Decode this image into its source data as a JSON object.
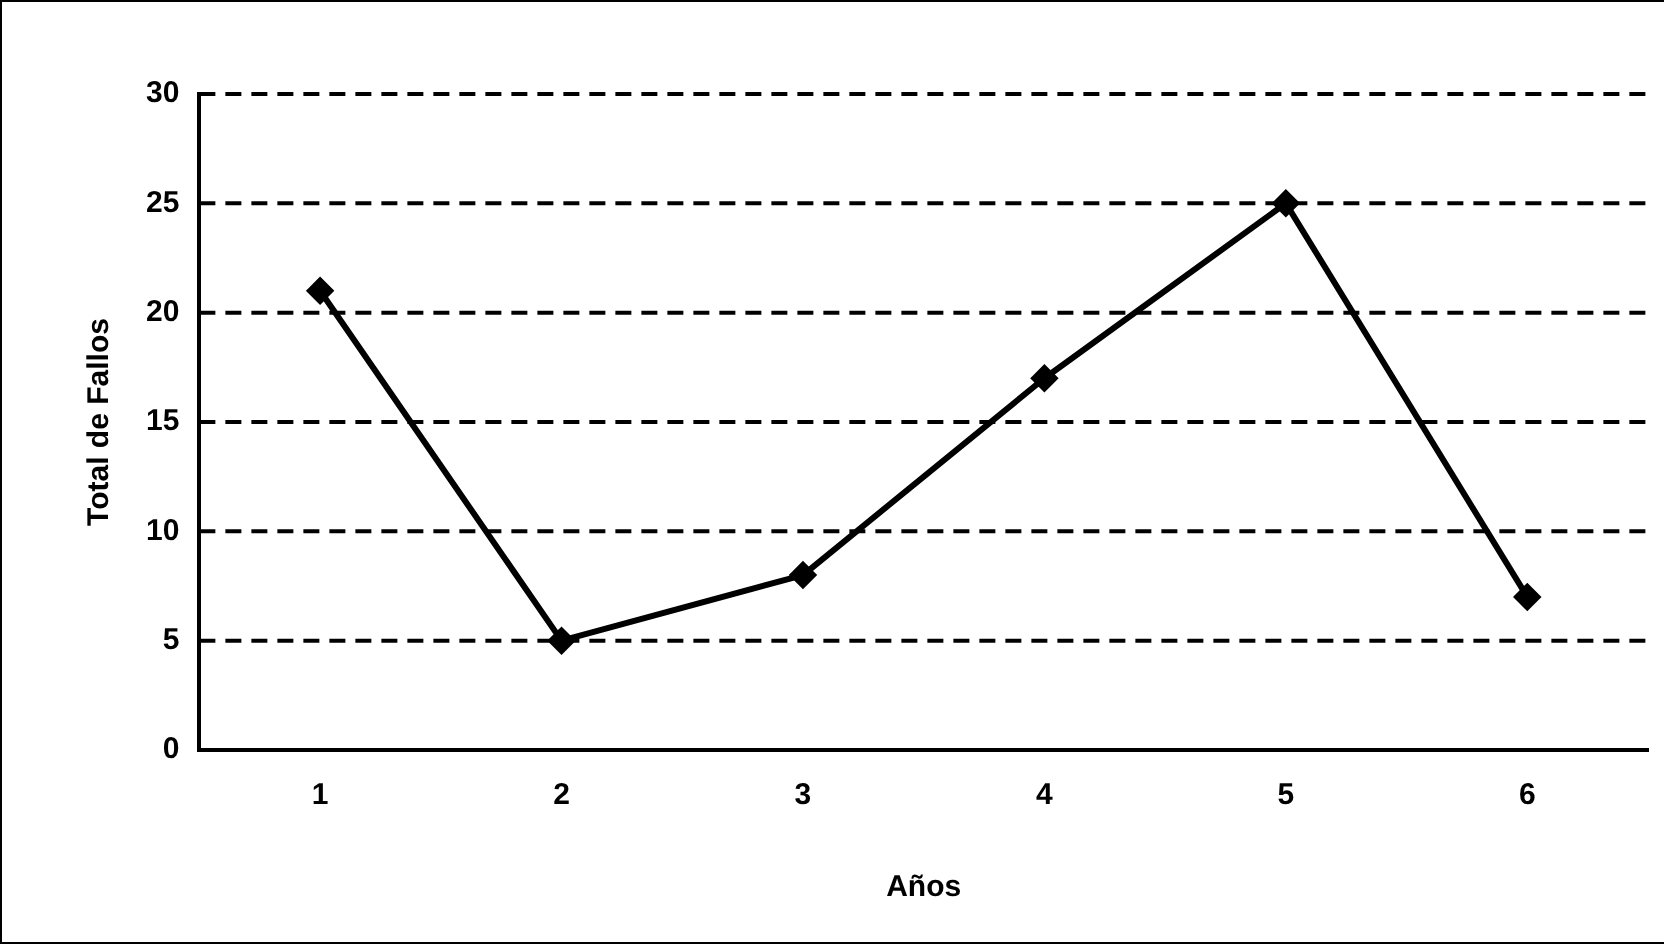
{
  "chart_data": {
    "type": "line",
    "xlabel": "Años",
    "ylabel": "Total de Fallos",
    "categories": [
      "1",
      "2",
      "3",
      "4",
      "5",
      "6"
    ],
    "series": [
      {
        "color": "#000000",
        "values": [
          21,
          5,
          8,
          17,
          25,
          7
        ]
      }
    ],
    "ylim": [
      0,
      30
    ],
    "yticks": [
      0,
      5,
      10,
      15,
      20,
      25,
      30
    ],
    "grid": "y",
    "legend": false,
    "marker": "diamond",
    "line_style": "solid"
  }
}
